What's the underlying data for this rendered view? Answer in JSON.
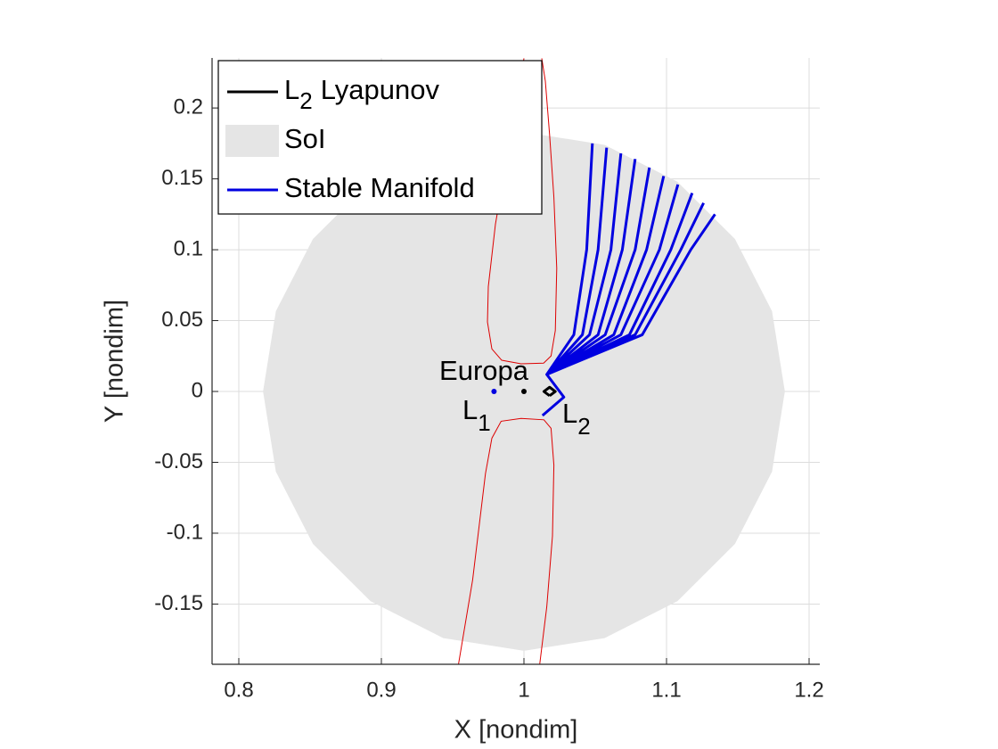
{
  "chart_data": {
    "type": "line",
    "xlabel": "X [nondim]",
    "ylabel": "Y [nondim]",
    "xlim": [
      0.78125,
      1.2075
    ],
    "ylim": [
      -0.1925,
      0.2353
    ],
    "xticks": [
      0.8,
      0.9,
      1,
      1.1,
      1.2
    ],
    "yticks": [
      -0.15,
      -0.1,
      -0.05,
      0,
      0.05,
      0.1,
      0.15,
      0.2
    ],
    "grid": true,
    "legend_position": "top-left",
    "series": [
      {
        "name_parts": [
          "L",
          "2",
          "Lyapunov"
        ],
        "color": "#000000",
        "kind": "line",
        "x": [
          1.018,
          1.022,
          1.018,
          1.014,
          1.018
        ],
        "y": [
          -0.003,
          0,
          0.003,
          0,
          -0.003
        ]
      },
      {
        "name": "SoI",
        "color": "#e5e5e5",
        "kind": "area",
        "x": [
          1.183,
          1.174,
          1.148,
          1.1076,
          1.0566,
          1,
          0.9434,
          0.8924,
          0.852,
          0.826,
          0.817,
          0.826,
          0.852,
          0.8924,
          0.9434,
          1,
          1.0566,
          1.1076,
          1.148,
          1.174
        ],
        "y": [
          0,
          0.0566,
          0.1076,
          0.148,
          0.174,
          0.183,
          0.174,
          0.148,
          0.1076,
          0.0566,
          0,
          -0.0566,
          -0.1076,
          -0.148,
          -0.174,
          -0.183,
          -0.174,
          -0.148,
          -0.1076,
          -0.0566
        ]
      },
      {
        "name": "Stable Manifold",
        "color": "#0000e0",
        "kind": "line",
        "x": [
          1.013,
          1.028,
          1.016,
          1.035,
          1.044,
          1.048,
          null,
          1.013,
          1.028,
          1.016,
          1.041,
          1.052,
          1.058,
          null,
          1.013,
          1.028,
          1.016,
          1.046,
          1.061,
          1.068,
          null,
          1.013,
          1.028,
          1.016,
          1.052,
          1.069,
          1.078,
          null,
          1.013,
          1.028,
          1.016,
          1.057,
          1.078,
          1.088,
          null,
          1.013,
          1.028,
          1.016,
          1.063,
          1.086,
          1.098,
          null,
          1.013,
          1.028,
          1.016,
          1.068,
          1.095,
          1.108,
          null,
          1.013,
          1.028,
          1.016,
          1.074,
          1.103,
          1.118,
          null,
          1.013,
          1.028,
          1.016,
          1.078,
          1.11,
          1.126,
          null,
          1.013,
          1.028,
          1.016,
          1.083,
          1.117,
          1.134
        ],
        "y": [
          -0.017,
          -0.004,
          0.012,
          0.04,
          0.1,
          0.175,
          null,
          -0.017,
          -0.004,
          0.012,
          0.04,
          0.1,
          0.172,
          null,
          -0.017,
          -0.004,
          0.012,
          0.04,
          0.1,
          0.168,
          null,
          -0.017,
          -0.004,
          0.012,
          0.04,
          0.1,
          0.164,
          null,
          -0.017,
          -0.004,
          0.012,
          0.04,
          0.1,
          0.158,
          null,
          -0.017,
          -0.004,
          0.012,
          0.04,
          0.1,
          0.152,
          null,
          -0.017,
          -0.004,
          0.012,
          0.04,
          0.1,
          0.146,
          null,
          -0.017,
          -0.004,
          0.012,
          0.04,
          0.1,
          0.14,
          null,
          -0.017,
          -0.004,
          0.012,
          0.04,
          0.1,
          0.133,
          null,
          -0.017,
          -0.004,
          0.012,
          0.04,
          0.1,
          0.125
        ]
      }
    ],
    "curves": [
      {
        "color": "#dd0000",
        "x": [
          1.0,
          0.9938,
          0.9875,
          0.98,
          0.975,
          0.9744,
          0.9775,
          0.9844,
          0.998,
          1.0138,
          1.019,
          1.022,
          1.023,
          1.021,
          1.018,
          1.015,
          1.0125
        ],
        "y": [
          0.235,
          0.2,
          0.162,
          0.118,
          0.074,
          0.049,
          0.03,
          0.022,
          0.0195,
          0.02,
          0.025,
          0.043,
          0.087,
          0.137,
          0.181,
          0.219,
          0.235
        ]
      },
      {
        "color": "#dd0000",
        "x": [
          0.954,
          0.964,
          0.973,
          0.9775,
          0.984,
          0.998,
          1.014,
          1.019,
          1.021,
          1.02,
          1.016,
          1.011
        ],
        "y": [
          -0.193,
          -0.133,
          -0.058,
          -0.033,
          -0.021,
          -0.019,
          -0.02,
          -0.026,
          -0.052,
          -0.102,
          -0.152,
          -0.193
        ]
      }
    ],
    "markers": [
      {
        "x": 1,
        "y": 0,
        "color": "#000000"
      },
      {
        "x": 0.979,
        "y": 0,
        "color": "#0000e0"
      }
    ],
    "annotations": [
      {
        "text": "Europa"
      },
      {
        "text": "L",
        "sub": "1"
      },
      {
        "text": "L",
        "sub": "2"
      }
    ]
  }
}
